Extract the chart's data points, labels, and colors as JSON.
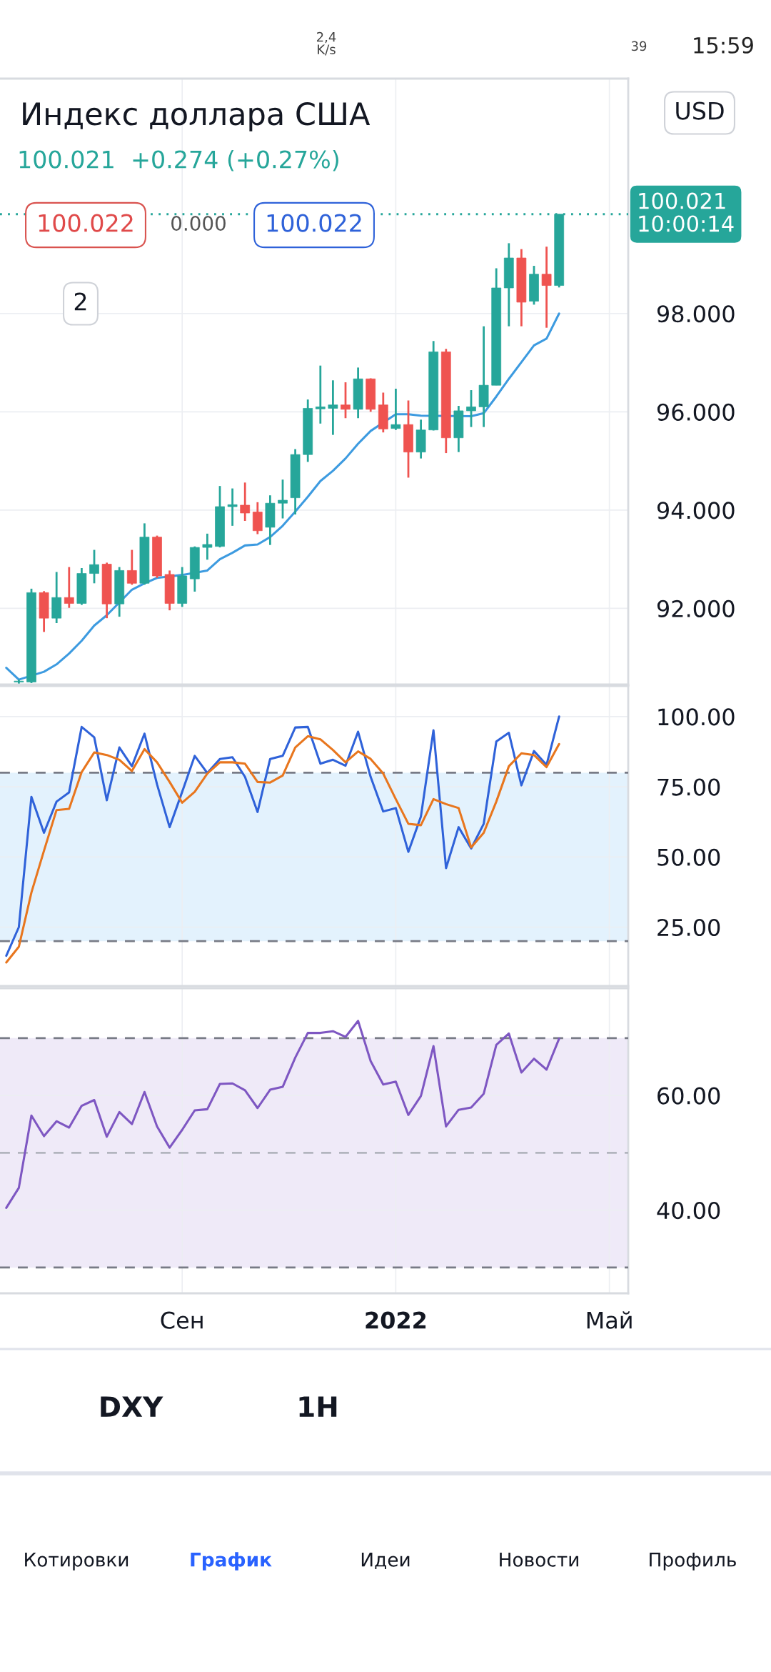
{
  "chart_data": [
    {
      "type": "candlestick",
      "title": "Индекс доллара США",
      "subtitle": "100.021  +0.274 (+0.27%)",
      "categories": [
        null,
        null,
        null,
        null,
        null,
        null,
        null,
        null,
        null,
        null,
        null,
        null,
        null,
        null,
        null,
        null,
        null,
        null,
        null,
        null,
        null,
        null,
        null,
        null,
        null,
        null,
        null,
        null,
        null,
        null,
        null,
        null,
        null,
        null,
        null,
        null,
        null,
        null,
        null,
        null,
        null,
        null,
        null,
        null,
        null,
        null,
        null,
        null,
        null,
        null
      ],
      "ohlc": [
        null,
        [
          90.5,
          90.55,
          90.47,
          90.52
        ],
        [
          90.5,
          92.4,
          90.48,
          92.32
        ],
        [
          92.32,
          92.35,
          91.52,
          91.8
        ],
        [
          91.8,
          92.74,
          91.7,
          92.22
        ],
        [
          92.22,
          92.84,
          92.01,
          92.1
        ],
        [
          92.1,
          92.82,
          92.07,
          92.71
        ],
        [
          92.71,
          93.19,
          92.51,
          92.89
        ],
        [
          92.9,
          92.93,
          91.8,
          92.09
        ],
        [
          92.09,
          92.84,
          91.83,
          92.77
        ],
        [
          92.77,
          93.19,
          92.48,
          92.51
        ],
        [
          92.51,
          93.73,
          92.48,
          93.45
        ],
        [
          93.45,
          93.48,
          92.62,
          92.66
        ],
        [
          92.69,
          92.77,
          91.96,
          92.1
        ],
        [
          92.1,
          92.84,
          92.03,
          92.66
        ],
        [
          92.6,
          93.26,
          92.34,
          93.24
        ],
        [
          93.24,
          93.52,
          92.99,
          93.3
        ],
        [
          93.26,
          94.49,
          93.24,
          94.07
        ],
        [
          94.07,
          94.44,
          93.68,
          94.11
        ],
        [
          94.1,
          94.56,
          93.78,
          93.94
        ],
        [
          93.96,
          94.16,
          93.51,
          93.58
        ],
        [
          93.65,
          94.3,
          93.29,
          94.14
        ],
        [
          94.14,
          94.62,
          93.83,
          94.2
        ],
        [
          94.25,
          95.24,
          93.91,
          95.13
        ],
        [
          95.13,
          96.25,
          94.98,
          96.07
        ],
        [
          96.06,
          96.94,
          95.76,
          96.1
        ],
        [
          96.07,
          96.64,
          95.53,
          96.14
        ],
        [
          96.14,
          96.6,
          95.87,
          96.05
        ],
        [
          96.05,
          96.9,
          95.87,
          96.67
        ],
        [
          96.67,
          96.68,
          96.0,
          96.05
        ],
        [
          96.14,
          96.39,
          95.58,
          95.65
        ],
        [
          95.66,
          96.47,
          95.63,
          95.74
        ],
        [
          95.74,
          96.23,
          94.66,
          95.18
        ],
        [
          95.18,
          95.84,
          95.05,
          95.63
        ],
        [
          95.63,
          97.44,
          95.62,
          97.22
        ],
        [
          97.22,
          97.28,
          95.16,
          95.47
        ],
        [
          95.47,
          96.12,
          95.18,
          96.02
        ],
        [
          96.02,
          96.44,
          95.69,
          96.1
        ],
        [
          96.1,
          97.74,
          95.69,
          96.54
        ],
        [
          96.54,
          98.92,
          96.54,
          98.52
        ],
        [
          98.52,
          99.43,
          97.74,
          99.13
        ],
        [
          99.13,
          99.31,
          97.74,
          98.23
        ],
        [
          98.25,
          98.97,
          98.18,
          98.8
        ],
        [
          98.8,
          99.36,
          97.71,
          98.57
        ],
        [
          98.57,
          100.021,
          98.53,
          100.021
        ],
        null,
        null,
        null,
        null,
        null
      ],
      "colors": [
        null,
        "#26a69a",
        "#26a69a",
        "#ef5350",
        "#26a69a",
        "#ef5350",
        "#26a69a",
        "#26a69a",
        "#ef5350",
        "#26a69a",
        "#ef5350",
        "#26a69a",
        "#ef5350",
        "#ef5350",
        "#26a69a",
        "#26a69a",
        "#26a69a",
        "#26a69a",
        "#26a69a",
        "#ef5350",
        "#ef5350",
        "#26a69a",
        "#26a69a",
        "#26a69a",
        "#26a69a",
        "#26a69a",
        "#26a69a",
        "#ef5350",
        "#26a69a",
        "#ef5350",
        "#ef5350",
        "#26a69a",
        "#ef5350",
        "#26a69a",
        "#26a69a",
        "#ef5350",
        "#26a69a",
        "#26a69a",
        "#26a69a",
        "#26a69a",
        "#26a69a",
        "#ef5350",
        "#26a69a",
        "#ef5350",
        "#26a69a",
        null,
        null,
        null,
        null,
        null
      ],
      "series": [
        {
          "type": "line",
          "color": "#3d9be0",
          "values": [
            90.79,
            90.55,
            null,
            90.71,
            90.86,
            91.08,
            91.34,
            91.65,
            91.86,
            null,
            92.38,
            92.51,
            92.62,
            null,
            92.68,
            null,
            92.77,
            93.0,
            93.13,
            93.28,
            93.3,
            93.45,
            93.68,
            93.97,
            94.27,
            94.59,
            94.8,
            95.05,
            95.35,
            95.61,
            null,
            95.95,
            95.95,
            95.92,
            null,
            null,
            null,
            95.91,
            95.97,
            96.31,
            96.67,
            97.01,
            97.35,
            97.49,
            98.0,
            null,
            null,
            null,
            null,
            null
          ]
        }
      ],
      "ylim": [
        90.45,
        102.78
      ],
      "yticks": [
        {
          "value": 92,
          "label": "92.000"
        },
        {
          "value": 94,
          "label": "94.000"
        },
        {
          "value": 96,
          "label": "96.000"
        },
        {
          "value": 98,
          "label": "98.000"
        }
      ],
      "ref_lines": [
        {
          "axis": "y",
          "value": 100.021,
          "label": "100.021\n10:00:14",
          "color": "#26a69a",
          "line_style": "dotted"
        }
      ],
      "grid": true,
      "tick_labels": "y",
      "annotations": [
        "100.022",
        "0.000",
        "100.022",
        "2",
        "USD",
        "2,4\nK/s",
        "39",
        "15:59"
      ]
    },
    {
      "type": "line",
      "categories": [
        null,
        null,
        null,
        null,
        null,
        null,
        null,
        null,
        null,
        null,
        null,
        null,
        null,
        null,
        null,
        null,
        null,
        null,
        null,
        null,
        null,
        null,
        null,
        null,
        null,
        null,
        null,
        null,
        null,
        null,
        null,
        null,
        null,
        null,
        null,
        null,
        null,
        null,
        null,
        null,
        null,
        null,
        null,
        null,
        null,
        null,
        null,
        null,
        null,
        null
      ],
      "series": [
        {
          "type": "line",
          "color": "#2f62d9",
          "values": [
            14.8,
            25.0,
            71.4,
            58.6,
            69.7,
            73.0,
            96.3,
            92.6,
            70.2,
            89.0,
            82.3,
            93.9,
            75.8,
            60.6,
            73.2,
            86.0,
            79.9,
            84.9,
            85.5,
            78.5,
            66.0,
            84.9,
            86.0,
            96.1,
            96.3,
            83.2,
            84.6,
            82.5,
            94.6,
            78.5,
            66.2,
            67.4,
            51.8,
            64.4,
            95.1,
            46.0,
            60.6,
            53.0,
            61.8,
            91.1,
            94.2,
            75.5,
            87.7,
            82.8,
            100.0,
            null,
            null,
            null,
            null,
            null
          ]
        },
        {
          "type": "line",
          "color": "#e8761e",
          "values": [
            12.4,
            18.0,
            37.3,
            52.2,
            66.7,
            67.1,
            80.2,
            87.2,
            86.3,
            84.6,
            80.6,
            88.4,
            83.7,
            76.7,
            69.3,
            73.2,
            79.7,
            83.7,
            83.7,
            83.2,
            76.7,
            76.5,
            79.0,
            89.0,
            93.0,
            91.9,
            88.1,
            83.7,
            87.6,
            84.9,
            79.7,
            70.6,
            61.8,
            61.3,
            70.6,
            68.8,
            67.4,
            53.4,
            58.6,
            69.7,
            82.3,
            86.9,
            86.3,
            82.0,
            90.2,
            null,
            null,
            null,
            null,
            null
          ]
        }
      ],
      "ylim": [
        4.0,
        110.9
      ],
      "yticks": [
        {
          "value": 25,
          "label": "25.00"
        },
        {
          "value": 50,
          "label": "50.00"
        },
        {
          "value": 75,
          "label": "75.00"
        },
        {
          "value": 100,
          "label": "100.00"
        }
      ],
      "ref_lines": [
        {
          "axis": "y",
          "value": 80,
          "color": "#787b86",
          "line_style": "dashed"
        },
        {
          "axis": "y",
          "value": 20,
          "color": "#787b86",
          "line_style": "dashed"
        }
      ],
      "bands": [
        {
          "axis": "y",
          "from": 20,
          "to": 80,
          "color": "#e3f2fd"
        }
      ],
      "grid": true,
      "tick_labels": "y"
    },
    {
      "type": "line",
      "categories": [
        null,
        null,
        null,
        null,
        null,
        null,
        null,
        null,
        null,
        null,
        null,
        null,
        null,
        null,
        "Сен",
        null,
        null,
        null,
        null,
        null,
        null,
        null,
        null,
        null,
        null,
        null,
        null,
        null,
        null,
        null,
        null,
        "2022",
        null,
        null,
        null,
        null,
        null,
        null,
        null,
        null,
        null,
        null,
        null,
        null,
        null,
        null,
        null,
        null,
        "Май",
        null
      ],
      "series": [
        {
          "type": "line",
          "color": "#7e57c2",
          "values": [
            40.4,
            43.9,
            56.5,
            52.9,
            55.5,
            54.4,
            58.2,
            59.2,
            52.8,
            57.1,
            55.0,
            60.6,
            54.6,
            50.9,
            54.0,
            57.4,
            57.6,
            62.0,
            62.1,
            60.9,
            57.8,
            61.0,
            61.5,
            66.6,
            70.9,
            70.9,
            71.2,
            70.2,
            73.0,
            66.0,
            61.9,
            62.4,
            56.6,
            59.9,
            68.6,
            54.6,
            57.5,
            57.9,
            60.3,
            68.8,
            70.8,
            64.0,
            66.4,
            64.5,
            69.9,
            null,
            null,
            null,
            null,
            null
          ]
        }
      ],
      "ylim": [
        25.5,
        78.7
      ],
      "yticks": [
        {
          "value": 40,
          "label": "40.00"
        },
        {
          "value": 60,
          "label": "60.00"
        }
      ],
      "ref_lines": [
        {
          "axis": "y",
          "value": 70,
          "color": "#787b86",
          "line_style": "dashed"
        },
        {
          "axis": "y",
          "value": 50,
          "color": "#b2b5be",
          "line_style": "dashed"
        },
        {
          "axis": "y",
          "value": 30,
          "color": "#787b86",
          "line_style": "dashed"
        }
      ],
      "bands": [
        {
          "axis": "y",
          "from": 30,
          "to": 70,
          "color": "#efeaf8"
        }
      ],
      "grid": true,
      "annotations": [
        "DXY",
        "1H",
        "Котировки",
        "График",
        "Идеи",
        "Новости",
        "Профиль"
      ]
    }
  ]
}
